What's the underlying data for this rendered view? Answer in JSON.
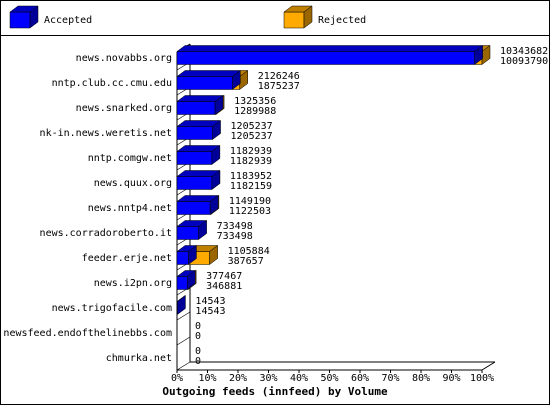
{
  "chart_data": {
    "type": "bar3d",
    "xlabel": "Outgoing feeds (innfeed) by Volume",
    "categories": [
      "news.novabbs.org",
      "nntp.club.cc.cmu.edu",
      "news.snarked.org",
      "nk-in.news.weretis.net",
      "nntp.comgw.net",
      "news.quux.org",
      "news.nntp4.net",
      "news.corradoroberto.it",
      "feeder.erje.net",
      "news.i2pn.org",
      "news.trigofacile.com",
      "newsfeed.endofthelinebbs.com",
      "chmurka.net"
    ],
    "totals": [
      10343682,
      2126246,
      1325356,
      1205237,
      1182939,
      1183952,
      1149190,
      733498,
      1105884,
      377467,
      14543,
      0,
      0
    ],
    "series": [
      {
        "name": "Accepted",
        "color": "#0000ff",
        "values": [
          10093790,
          1875237,
          1289988,
          1205237,
          1182939,
          1182159,
          1122503,
          733498,
          387657,
          346881,
          14543,
          0,
          0
        ]
      },
      {
        "name": "Rejected",
        "color": "#ffaa00"
      }
    ],
    "xlim": [
      0,
      100
    ],
    "xticks": [
      {
        "value": 0,
        "label": "0%"
      },
      {
        "value": 10,
        "label": "10%"
      },
      {
        "value": 20,
        "label": "20%"
      },
      {
        "value": 30,
        "label": "30%"
      },
      {
        "value": 40,
        "label": "40%"
      },
      {
        "value": 50,
        "label": "50%"
      },
      {
        "value": 60,
        "label": "60%"
      },
      {
        "value": 70,
        "label": "70%"
      },
      {
        "value": 80,
        "label": "80%"
      },
      {
        "value": 90,
        "label": "90%"
      },
      {
        "value": 100,
        "label": "100%"
      }
    ]
  }
}
